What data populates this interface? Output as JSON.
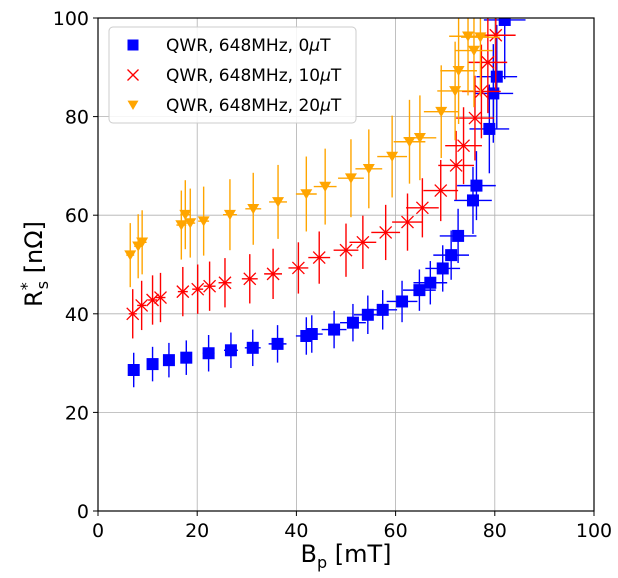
{
  "chart_data": {
    "type": "scatter",
    "title": "",
    "xlabel_main": "B",
    "xlabel_sub": "p",
    "xlabel_unit": " [mT]",
    "ylabel_main": "R",
    "ylabel_sup": "*",
    "ylabel_sub": "s",
    "ylabel_unit": " [nΩ]",
    "xlim": [
      0,
      100
    ],
    "ylim": [
      0,
      100
    ],
    "xticks": [
      0,
      20,
      40,
      60,
      80,
      100
    ],
    "yticks": [
      0,
      20,
      40,
      60,
      80,
      100
    ],
    "grid": true,
    "legend_position": "top-left",
    "series": [
      {
        "name_prefix": "QWR, 648MHz, 0",
        "name_unit": "T",
        "marker": "square",
        "color": "#0000ff",
        "points": [
          {
            "x": 7.2,
            "y": 28.6,
            "xerr": 0.8,
            "yerr": 3.5
          },
          {
            "x": 11.0,
            "y": 29.8,
            "xerr": 0.9,
            "yerr": 3.5
          },
          {
            "x": 14.3,
            "y": 30.6,
            "xerr": 1.0,
            "yerr": 3.5
          },
          {
            "x": 17.8,
            "y": 31.1,
            "xerr": 1.0,
            "yerr": 3.5
          },
          {
            "x": 22.3,
            "y": 32.0,
            "xerr": 1.2,
            "yerr": 3.7
          },
          {
            "x": 26.8,
            "y": 32.6,
            "xerr": 1.4,
            "yerr": 3.6
          },
          {
            "x": 31.2,
            "y": 33.1,
            "xerr": 1.6,
            "yerr": 3.7
          },
          {
            "x": 36.2,
            "y": 33.9,
            "xerr": 1.8,
            "yerr": 3.8
          },
          {
            "x": 42.0,
            "y": 35.5,
            "xerr": 2.1,
            "yerr": 3.8
          },
          {
            "x": 43.1,
            "y": 35.9,
            "xerr": 2.2,
            "yerr": 3.8
          },
          {
            "x": 47.6,
            "y": 36.8,
            "xerr": 2.5,
            "yerr": 3.8
          },
          {
            "x": 51.4,
            "y": 38.2,
            "xerr": 2.6,
            "yerr": 3.8
          },
          {
            "x": 54.4,
            "y": 39.8,
            "xerr": 2.8,
            "yerr": 3.9
          },
          {
            "x": 57.4,
            "y": 40.8,
            "xerr": 2.9,
            "yerr": 4.0
          },
          {
            "x": 61.3,
            "y": 42.5,
            "xerr": 3.1,
            "yerr": 4.2
          },
          {
            "x": 64.8,
            "y": 44.8,
            "xerr": 3.3,
            "yerr": 4.2
          },
          {
            "x": 67.0,
            "y": 46.3,
            "xerr": 3.4,
            "yerr": 4.4
          },
          {
            "x": 69.5,
            "y": 49.2,
            "xerr": 3.5,
            "yerr": 4.7
          },
          {
            "x": 71.2,
            "y": 51.9,
            "xerr": 3.6,
            "yerr": 5.0
          },
          {
            "x": 72.6,
            "y": 55.8,
            "xerr": 3.7,
            "yerr": 5.5
          },
          {
            "x": 75.6,
            "y": 63.0,
            "xerr": 3.8,
            "yerr": 6.8
          },
          {
            "x": 76.3,
            "y": 66.0,
            "xerr": 3.9,
            "yerr": 7.0
          },
          {
            "x": 78.9,
            "y": 77.5,
            "xerr": 4.0,
            "yerr": 9.0
          },
          {
            "x": 79.7,
            "y": 84.7,
            "xerr": 4.0,
            "yerr": 10.0
          },
          {
            "x": 80.4,
            "y": 88.1,
            "xerr": 4.1,
            "yerr": 10.5
          },
          {
            "x": 82.0,
            "y": 99.6,
            "xerr": 4.2,
            "yerr": 12.0
          }
        ]
      },
      {
        "name_prefix": "QWR, 648MHz, 10",
        "name_unit": "T",
        "marker": "x",
        "color": "#ff0000",
        "points": [
          {
            "x": 7.0,
            "y": 40.0,
            "xerr": 0.8,
            "yerr": 5.0
          },
          {
            "x": 8.8,
            "y": 41.7,
            "xerr": 0.9,
            "yerr": 5.0
          },
          {
            "x": 11.0,
            "y": 42.8,
            "xerr": 0.9,
            "yerr": 5.0
          },
          {
            "x": 12.6,
            "y": 43.3,
            "xerr": 1.0,
            "yerr": 5.0
          },
          {
            "x": 17.1,
            "y": 44.5,
            "xerr": 1.0,
            "yerr": 5.0
          },
          {
            "x": 20.1,
            "y": 45.0,
            "xerr": 1.1,
            "yerr": 5.0
          },
          {
            "x": 22.5,
            "y": 45.6,
            "xerr": 1.2,
            "yerr": 5.0
          },
          {
            "x": 25.6,
            "y": 46.3,
            "xerr": 1.3,
            "yerr": 5.0
          },
          {
            "x": 30.6,
            "y": 47.1,
            "xerr": 1.6,
            "yerr": 5.0
          },
          {
            "x": 35.3,
            "y": 48.1,
            "xerr": 1.8,
            "yerr": 5.1
          },
          {
            "x": 40.4,
            "y": 49.3,
            "xerr": 2.0,
            "yerr": 5.2
          },
          {
            "x": 44.6,
            "y": 51.4,
            "xerr": 2.2,
            "yerr": 5.3
          },
          {
            "x": 50.0,
            "y": 52.9,
            "xerr": 2.5,
            "yerr": 5.4
          },
          {
            "x": 53.4,
            "y": 54.5,
            "xerr": 2.7,
            "yerr": 5.4
          },
          {
            "x": 58.0,
            "y": 56.5,
            "xerr": 2.9,
            "yerr": 5.6
          },
          {
            "x": 62.4,
            "y": 58.6,
            "xerr": 3.1,
            "yerr": 5.8
          },
          {
            "x": 65.4,
            "y": 61.5,
            "xerr": 3.3,
            "yerr": 6.0
          },
          {
            "x": 69.1,
            "y": 65.0,
            "xerr": 3.5,
            "yerr": 6.2
          },
          {
            "x": 72.2,
            "y": 70.1,
            "xerr": 3.6,
            "yerr": 7.0
          },
          {
            "x": 73.7,
            "y": 74.1,
            "xerr": 3.7,
            "yerr": 7.8
          },
          {
            "x": 76.0,
            "y": 79.7,
            "xerr": 3.8,
            "yerr": 8.6
          },
          {
            "x": 77.3,
            "y": 85.1,
            "xerr": 3.9,
            "yerr": 9.5
          },
          {
            "x": 78.6,
            "y": 91.0,
            "xerr": 3.9,
            "yerr": 10.3
          },
          {
            "x": 80.2,
            "y": 96.5,
            "xerr": 4.0,
            "yerr": 11.0
          }
        ]
      },
      {
        "name_prefix": "QWR, 648MHz, 20",
        "name_unit": "T",
        "marker": "triangle-down",
        "color": "#ffa500",
        "points": [
          {
            "x": 6.5,
            "y": 51.9,
            "xerr": 0.8,
            "yerr": 6.5
          },
          {
            "x": 8.1,
            "y": 53.7,
            "xerr": 0.8,
            "yerr": 6.5
          },
          {
            "x": 8.9,
            "y": 54.5,
            "xerr": 0.9,
            "yerr": 6.5
          },
          {
            "x": 16.8,
            "y": 58.0,
            "xerr": 1.0,
            "yerr": 7.0
          },
          {
            "x": 17.6,
            "y": 60.1,
            "xerr": 1.0,
            "yerr": 7.0
          },
          {
            "x": 18.6,
            "y": 58.4,
            "xerr": 1.0,
            "yerr": 7.0
          },
          {
            "x": 21.3,
            "y": 58.8,
            "xerr": 1.1,
            "yerr": 7.0
          },
          {
            "x": 26.6,
            "y": 60.1,
            "xerr": 1.4,
            "yerr": 7.2
          },
          {
            "x": 31.3,
            "y": 61.3,
            "xerr": 1.6,
            "yerr": 7.3
          },
          {
            "x": 36.3,
            "y": 62.7,
            "xerr": 1.8,
            "yerr": 7.5
          },
          {
            "x": 42.0,
            "y": 64.3,
            "xerr": 2.1,
            "yerr": 7.6
          },
          {
            "x": 45.8,
            "y": 65.8,
            "xerr": 2.3,
            "yerr": 7.7
          },
          {
            "x": 51.0,
            "y": 67.5,
            "xerr": 2.6,
            "yerr": 7.9
          },
          {
            "x": 54.6,
            "y": 69.4,
            "xerr": 2.7,
            "yerr": 8.0
          },
          {
            "x": 59.3,
            "y": 71.9,
            "xerr": 3.0,
            "yerr": 8.3
          },
          {
            "x": 62.8,
            "y": 74.9,
            "xerr": 3.2,
            "yerr": 8.5
          },
          {
            "x": 64.9,
            "y": 75.7,
            "xerr": 3.3,
            "yerr": 8.6
          },
          {
            "x": 69.2,
            "y": 81.0,
            "xerr": 3.5,
            "yerr": 9.4
          },
          {
            "x": 72.0,
            "y": 85.2,
            "xerr": 3.6,
            "yerr": 10.0
          },
          {
            "x": 72.7,
            "y": 89.3,
            "xerr": 3.7,
            "yerr": 10.8
          },
          {
            "x": 74.6,
            "y": 96.3,
            "xerr": 3.8,
            "yerr": 12.0
          },
          {
            "x": 75.8,
            "y": 93.4,
            "xerr": 3.8,
            "yerr": 11.5
          },
          {
            "x": 77.1,
            "y": 96.1,
            "xerr": 3.9,
            "yerr": 12.0
          }
        ]
      }
    ]
  }
}
